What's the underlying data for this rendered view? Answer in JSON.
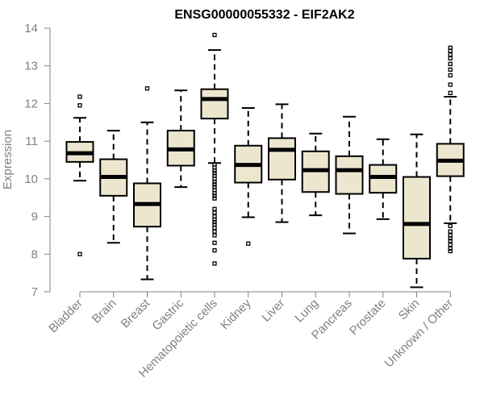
{
  "chart_data": {
    "type": "boxplot",
    "title": "ENSG00000055332 - EIF2AK2",
    "xlabel": "",
    "ylabel": "Expression",
    "ylim": [
      7,
      14
    ],
    "yticks": [
      7,
      8,
      9,
      10,
      11,
      12,
      13,
      14
    ],
    "colors": {
      "box_fill": "#ede6cf",
      "stroke": "#000000",
      "axis": "#808080"
    },
    "categories": [
      "Bladder",
      "Brain",
      "Breast",
      "Gastric",
      "Hematopoietic cells",
      "Kidney",
      "Liver",
      "Lung",
      "Pancreas",
      "Prostate",
      "Skin",
      "Unknown / Other"
    ],
    "boxes": [
      {
        "q1": 10.45,
        "median": 10.68,
        "q3": 10.98,
        "low": 9.95,
        "high": 11.62,
        "outliers": [
          8.0,
          11.95,
          12.18
        ]
      },
      {
        "q1": 9.55,
        "median": 10.05,
        "q3": 10.52,
        "low": 8.3,
        "high": 11.28,
        "outliers": []
      },
      {
        "q1": 8.73,
        "median": 9.33,
        "q3": 9.88,
        "low": 7.33,
        "high": 11.5,
        "outliers": [
          12.4
        ]
      },
      {
        "q1": 10.35,
        "median": 10.78,
        "q3": 11.28,
        "low": 9.78,
        "high": 12.35,
        "outliers": []
      },
      {
        "q1": 11.6,
        "median": 12.12,
        "q3": 12.38,
        "low": 10.42,
        "high": 13.42,
        "outliers": [
          13.82,
          10.38,
          10.3,
          10.22,
          10.15,
          10.08,
          10.0,
          9.92,
          9.85,
          9.78,
          9.7,
          9.62,
          9.55,
          9.48,
          9.2,
          9.1,
          9.0,
          8.92,
          8.85,
          8.78,
          8.7,
          8.6,
          8.5,
          8.3,
          8.1,
          7.75
        ]
      },
      {
        "q1": 9.9,
        "median": 10.37,
        "q3": 10.88,
        "low": 8.98,
        "high": 11.88,
        "outliers": [
          8.28
        ]
      },
      {
        "q1": 9.98,
        "median": 10.77,
        "q3": 11.08,
        "low": 8.85,
        "high": 11.98,
        "outliers": []
      },
      {
        "q1": 9.65,
        "median": 10.23,
        "q3": 10.73,
        "low": 9.03,
        "high": 11.2,
        "outliers": []
      },
      {
        "q1": 9.6,
        "median": 10.23,
        "q3": 10.6,
        "low": 8.55,
        "high": 11.65,
        "outliers": []
      },
      {
        "q1": 9.63,
        "median": 10.05,
        "q3": 10.37,
        "low": 8.93,
        "high": 11.05,
        "outliers": []
      },
      {
        "q1": 7.88,
        "median": 8.8,
        "q3": 10.05,
        "low": 7.12,
        "high": 11.18,
        "outliers": []
      },
      {
        "q1": 10.07,
        "median": 10.48,
        "q3": 10.93,
        "low": 8.82,
        "high": 12.18,
        "outliers": [
          13.48,
          13.4,
          13.3,
          13.2,
          13.05,
          12.9,
          12.75,
          12.5,
          12.28,
          8.75,
          8.6,
          8.5,
          8.42,
          8.35,
          8.25,
          8.15,
          8.08
        ]
      }
    ]
  }
}
